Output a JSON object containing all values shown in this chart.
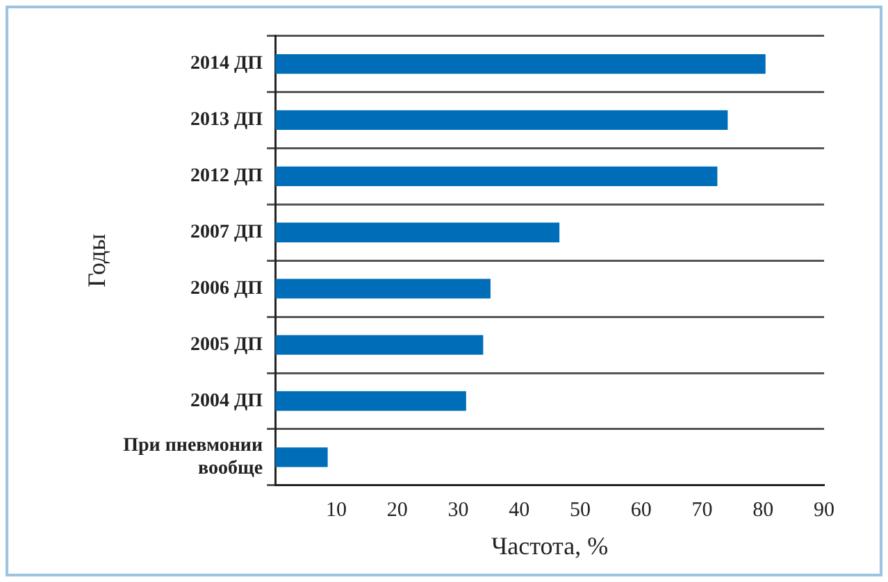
{
  "chart_data": {
    "type": "bar",
    "orientation": "horizontal",
    "xlabel": "Частота, %",
    "ylabel": "Годы",
    "categories": [
      "2014 ДП",
      "2013 ДП",
      "2012 ДП",
      "2007 ДП",
      "2006 ДП",
      "2005 ДП",
      "2004 ДП",
      "При пневмонии вообще"
    ],
    "values": [
      80.4,
      74.2,
      72.5,
      46.6,
      35.3,
      34.1,
      31.3,
      8.6
    ],
    "color": "#006db8",
    "xlim": [
      0,
      90
    ],
    "xticks": [
      10,
      20,
      30,
      40,
      50,
      60,
      70,
      80,
      90
    ],
    "grid": "y",
    "legend": false
  }
}
